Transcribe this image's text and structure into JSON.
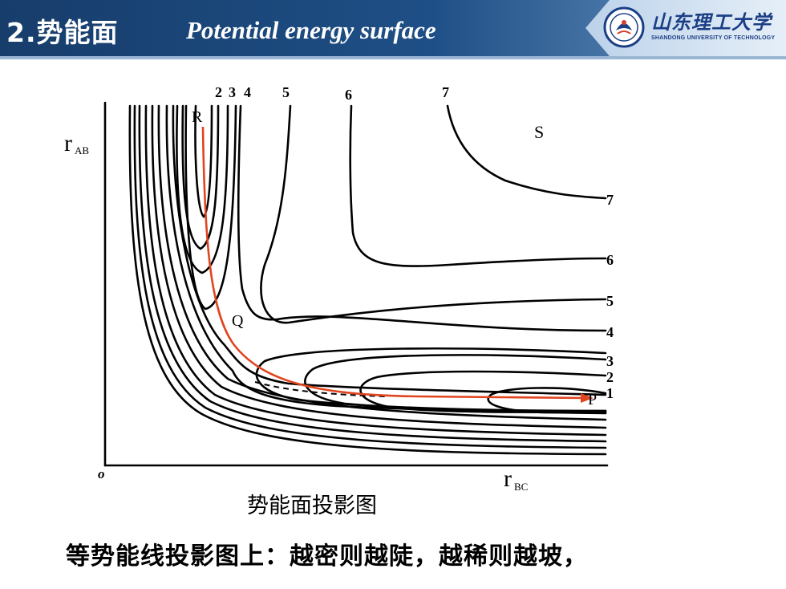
{
  "header": {
    "title_cn": "2.势能面",
    "title_en": "Potential energy surface"
  },
  "logo": {
    "name": "山东理工大学",
    "subtitle": "SHANDONG UNIVERSITY OF TECHNOLOGY"
  },
  "diagram": {
    "axis_y_label": "r",
    "axis_y_sub": "AB",
    "axis_x_label": "r",
    "axis_x_sub": "BC",
    "origin_label": "o",
    "top_labels": [
      "2",
      "3",
      "4",
      "5",
      "6",
      "7"
    ],
    "right_labels": [
      "7",
      "6",
      "5",
      "4",
      "3",
      "2",
      "1"
    ],
    "point_R": "R",
    "point_Q": "Q",
    "point_P": "P",
    "point_S": "S"
  },
  "caption": "势能面投影图",
  "bottom_text": "等势能线投影图上：越密则越陡，越稀则越坡，",
  "colors": {
    "header_dark": "#173d6b",
    "path_red": "#e0451f"
  }
}
